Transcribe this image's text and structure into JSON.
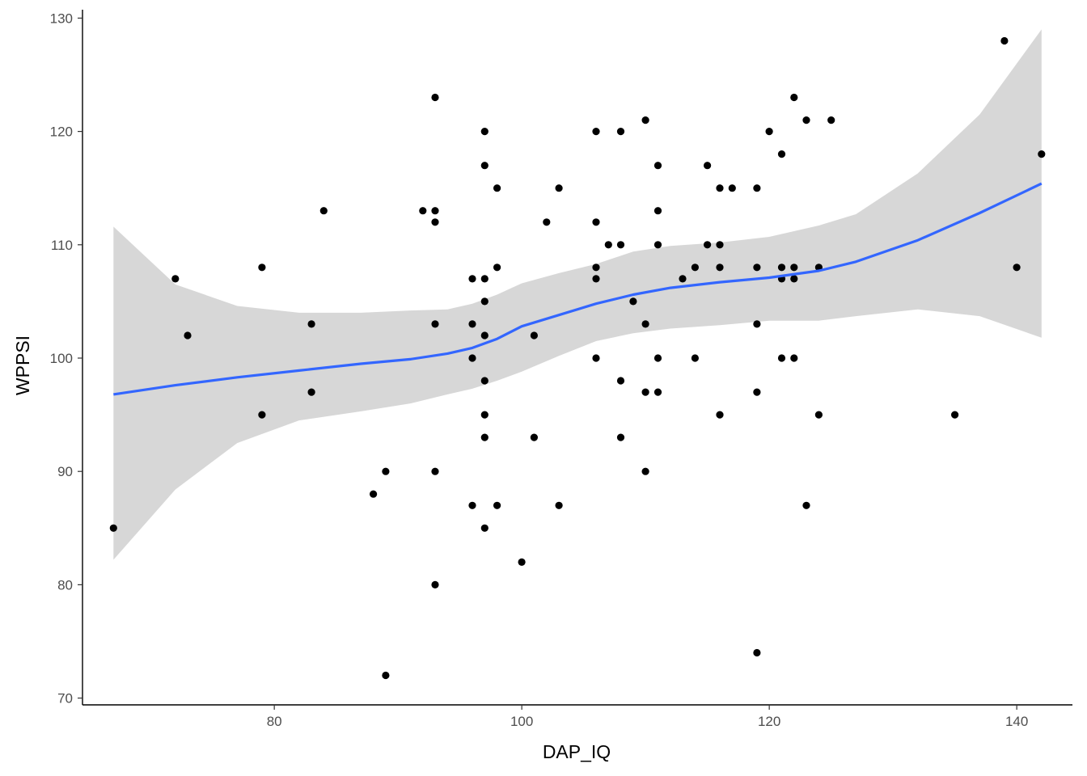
{
  "chart_data": {
    "type": "scatter",
    "xlabel": "DAP_IQ",
    "ylabel": "WPPSI",
    "xlim": [
      64.5,
      144.5
    ],
    "ylim": [
      69.4,
      130.6
    ],
    "x_ticks": [
      80,
      100,
      120,
      140
    ],
    "y_ticks": [
      70,
      80,
      90,
      100,
      110,
      120,
      130
    ],
    "x_tick_labels": [
      "80",
      "100",
      "120",
      "140"
    ],
    "y_tick_labels": [
      "70",
      "80",
      "90",
      "100",
      "110",
      "120",
      "130"
    ],
    "grid": false,
    "legend": "none",
    "point_color": "#000000",
    "smooth_color": "#3366ff",
    "ribbon_color": "#d3d3d3",
    "points": [
      [
        67,
        85
      ],
      [
        72,
        107
      ],
      [
        73,
        102
      ],
      [
        79,
        108
      ],
      [
        79,
        95
      ],
      [
        83,
        103
      ],
      [
        83,
        97
      ],
      [
        84,
        113
      ],
      [
        88,
        88
      ],
      [
        89,
        90
      ],
      [
        89,
        72
      ],
      [
        92,
        113
      ],
      [
        93,
        123
      ],
      [
        93,
        113
      ],
      [
        93,
        112
      ],
      [
        93,
        103
      ],
      [
        93,
        90
      ],
      [
        93,
        80
      ],
      [
        96,
        107
      ],
      [
        96,
        103
      ],
      [
        96,
        100
      ],
      [
        96,
        87
      ],
      [
        97,
        120
      ],
      [
        97,
        117
      ],
      [
        97,
        107
      ],
      [
        97,
        105
      ],
      [
        97,
        102
      ],
      [
        97,
        98
      ],
      [
        97,
        95
      ],
      [
        97,
        93
      ],
      [
        97,
        85
      ],
      [
        98,
        115
      ],
      [
        98,
        108
      ],
      [
        98,
        87
      ],
      [
        100,
        82
      ],
      [
        101,
        102
      ],
      [
        101,
        93
      ],
      [
        102,
        112
      ],
      [
        103,
        115
      ],
      [
        103,
        87
      ],
      [
        106,
        120
      ],
      [
        106,
        112
      ],
      [
        106,
        108
      ],
      [
        106,
        107
      ],
      [
        106,
        100
      ],
      [
        107,
        110
      ],
      [
        108,
        120
      ],
      [
        108,
        110
      ],
      [
        108,
        98
      ],
      [
        108,
        93
      ],
      [
        109,
        105
      ],
      [
        110,
        121
      ],
      [
        110,
        103
      ],
      [
        110,
        97
      ],
      [
        110,
        90
      ],
      [
        111,
        117
      ],
      [
        111,
        113
      ],
      [
        111,
        110
      ],
      [
        111,
        100
      ],
      [
        111,
        97
      ],
      [
        113,
        107
      ],
      [
        114,
        108
      ],
      [
        114,
        100
      ],
      [
        115,
        117
      ],
      [
        115,
        110
      ],
      [
        116,
        115
      ],
      [
        116,
        110
      ],
      [
        116,
        108
      ],
      [
        116,
        95
      ],
      [
        117,
        115
      ],
      [
        119,
        115
      ],
      [
        119,
        108
      ],
      [
        119,
        103
      ],
      [
        119,
        97
      ],
      [
        119,
        74
      ],
      [
        120,
        120
      ],
      [
        121,
        118
      ],
      [
        121,
        108
      ],
      [
        121,
        107
      ],
      [
        121,
        100
      ],
      [
        122,
        123
      ],
      [
        122,
        108
      ],
      [
        122,
        107
      ],
      [
        122,
        100
      ],
      [
        123,
        121
      ],
      [
        123,
        87
      ],
      [
        124,
        108
      ],
      [
        124,
        95
      ],
      [
        125,
        121
      ],
      [
        135,
        95
      ],
      [
        139,
        128
      ],
      [
        140,
        108
      ],
      [
        142,
        118
      ]
    ],
    "smooth": {
      "x": [
        67,
        72,
        77,
        82,
        87,
        91,
        94,
        96,
        98,
        100,
        103,
        106,
        109,
        112,
        116,
        120,
        124,
        127,
        132,
        137,
        142
      ],
      "y": [
        96.8,
        97.6,
        98.3,
        98.9,
        99.5,
        99.9,
        100.4,
        100.9,
        101.7,
        102.8,
        103.8,
        104.8,
        105.6,
        106.2,
        106.7,
        107.1,
        107.7,
        108.5,
        110.4,
        112.8,
        115.4
      ],
      "lower": [
        82.2,
        88.4,
        92.5,
        94.5,
        95.3,
        96.0,
        96.8,
        97.3,
        98.0,
        98.8,
        100.2,
        101.5,
        102.2,
        102.6,
        102.9,
        103.3,
        103.3,
        103.7,
        104.3,
        103.7,
        101.8
      ],
      "upper": [
        111.6,
        106.5,
        104.6,
        104.0,
        104.0,
        104.2,
        104.3,
        104.8,
        105.6,
        106.6,
        107.5,
        108.3,
        109.4,
        109.9,
        110.2,
        110.7,
        111.7,
        112.7,
        116.3,
        121.5,
        129.0
      ]
    }
  }
}
